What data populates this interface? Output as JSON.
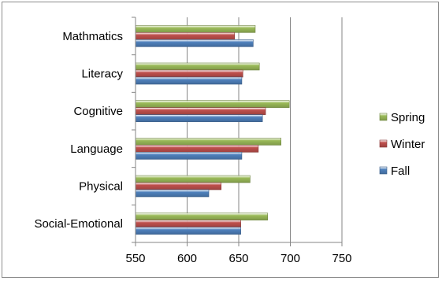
{
  "chart_data": {
    "type": "bar",
    "orientation": "horizontal",
    "title": "",
    "xlabel": "",
    "ylabel": "",
    "categories": [
      "Mathmatics",
      "Literacy",
      "Cognitive",
      "Language",
      "Physical",
      "Social-Emotional"
    ],
    "series": [
      {
        "name": "Spring",
        "color": "#9bbb59",
        "values": [
          666,
          670,
          699,
          691,
          661,
          678
        ]
      },
      {
        "name": "Winter",
        "color": "#c0504d",
        "values": [
          646,
          654,
          676,
          669,
          633,
          652
        ]
      },
      {
        "name": "Fall",
        "color": "#4f81bd",
        "values": [
          664,
          653,
          673,
          653,
          621,
          652
        ]
      }
    ],
    "xlim": [
      550,
      750
    ],
    "xticks": [
      "550",
      "600",
      "650",
      "700",
      "750"
    ],
    "grid": "vertical",
    "legend_position": "right"
  }
}
